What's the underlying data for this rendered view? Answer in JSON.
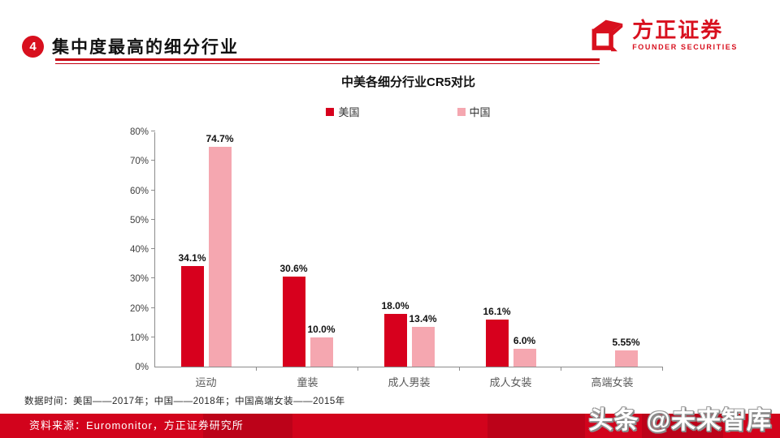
{
  "header": {
    "badge": "4",
    "title": "集中度最高的细分行业",
    "logo_cn": "方正证券",
    "logo_en": "FOUNDER SECURITIES"
  },
  "chart_data": {
    "type": "bar",
    "title": "中美各细分行业CR5对比",
    "categories": [
      "运动",
      "童装",
      "成人男装",
      "成人女装",
      "高端女装"
    ],
    "series": [
      {
        "name": "美国",
        "color": "#d7001d",
        "values": [
          34.1,
          30.6,
          18.0,
          16.1,
          null
        ],
        "labels": [
          "34.1%",
          "30.6%",
          "18.0%",
          "16.1%",
          ""
        ]
      },
      {
        "name": "中国",
        "color": "#f5a7b0",
        "values": [
          74.7,
          10.0,
          13.4,
          6.0,
          5.55
        ],
        "labels": [
          "74.7%",
          "10.0%",
          "13.4%",
          "6.0%",
          "5.55%"
        ]
      }
    ],
    "ylim": [
      0,
      80
    ],
    "ytick_step": 10,
    "ytick_labels": [
      "0%",
      "10%",
      "20%",
      "30%",
      "40%",
      "50%",
      "60%",
      "70%",
      "80%"
    ],
    "legend_position": "top",
    "grid": false
  },
  "footer": {
    "note": "数据时间：美国——2017年；中国——2018年；中国高端女装——2015年",
    "source": "资料来源：Euromonitor，方正证券研究所",
    "watermark": "头条 @未来智库"
  },
  "colors": {
    "brand_red": "#d8101e",
    "rule_red": "#c50010",
    "bar_us_red": "#d7001d",
    "bar_cn_pink": "#f5a7b0",
    "band_red": "#d2031c",
    "axis_gray": "#8c8c8c",
    "label_gray": "#595959"
  },
  "icons": {
    "logo": "founder-cube-icon",
    "badge": "numbered-circle-badge"
  }
}
